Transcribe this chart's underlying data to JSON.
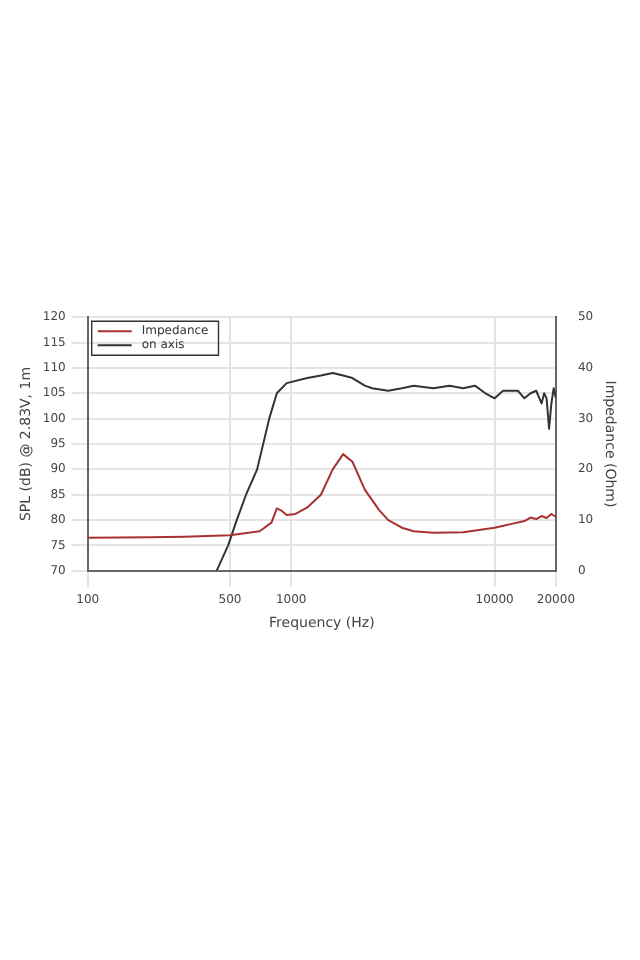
{
  "chart_data": {
    "type": "line",
    "xlabel": "Frequency (Hz)",
    "ylabel": "SPL (dB) @ 2.83V, 1m",
    "y2label": "Impedance (Ohm)",
    "xlim": [
      100,
      20000
    ],
    "xticks": [
      100,
      500,
      1000,
      10000,
      20000
    ],
    "ylim": [
      70,
      120
    ],
    "yticks": [
      70,
      75,
      80,
      85,
      90,
      95,
      100,
      105,
      110,
      115,
      120
    ],
    "y2lim": [
      0,
      50
    ],
    "y2ticks": [
      0,
      10,
      20,
      30,
      40,
      50
    ],
    "log": "x",
    "grid": true,
    "legend": "top left",
    "marker": "none",
    "line_style": "solid",
    "series": [
      {
        "name": "Impedance",
        "color": "#a83232",
        "axis": "y2",
        "x": [
          100,
          200,
          300,
          500,
          700,
          800,
          850,
          900,
          950,
          1050,
          1200,
          1400,
          1600,
          1800,
          2000,
          2300,
          2700,
          3000,
          3500,
          4000,
          5000,
          7000,
          10000,
          12000,
          14000,
          15000,
          16000,
          17000,
          18000,
          19000,
          20000
        ],
        "values": [
          6.5,
          6.6,
          6.7,
          7,
          7.8,
          9.5,
          12.3,
          11.8,
          11,
          11.2,
          12.5,
          15,
          20,
          23,
          21.5,
          16,
          12,
          10,
          8.5,
          7.8,
          7.5,
          7.6,
          8.5,
          9.2,
          9.8,
          10.5,
          10.2,
          10.8,
          10.4,
          11.2,
          10.6
        ]
      },
      {
        "name": "on axis",
        "color": "#333333",
        "x": [
          430,
          490,
          540,
          600,
          680,
          780,
          850,
          950,
          1200,
          1400,
          1600,
          1800,
          2000,
          2300,
          2500,
          3000,
          3500,
          4000,
          5000,
          6000,
          7000,
          8000,
          9000,
          10000,
          11000,
          13000,
          14000,
          15000,
          16000,
          17000,
          17500,
          18000,
          18500,
          19000,
          19500,
          20000
        ],
        "values": [
          70,
          75,
          80,
          85,
          90,
          100,
          105,
          107,
          108,
          108.5,
          109,
          108.5,
          108,
          106.5,
          106,
          105.5,
          106,
          106.5,
          106,
          106.5,
          106,
          106.5,
          105,
          104,
          105.5,
          105.5,
          104,
          105,
          105.5,
          103,
          105,
          104,
          98,
          103,
          106,
          104
        ]
      }
    ]
  }
}
